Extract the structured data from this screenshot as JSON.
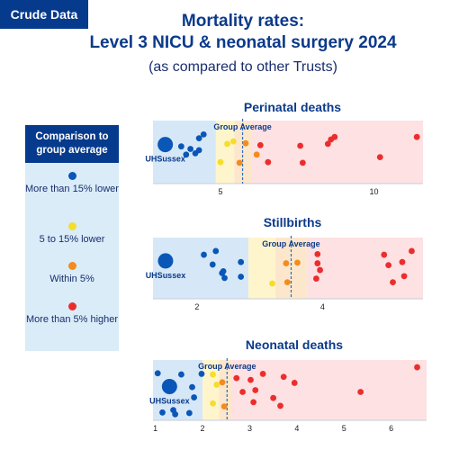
{
  "tag": "Crude Data",
  "title_line1": "Mortality rates:",
  "title_line2": "Level 3 NICU & neonatal surgery 2024",
  "subtitle": "(as compared to other Trusts)",
  "legend": {
    "header": "Comparison to group average",
    "items": [
      {
        "label": "More than 15% lower",
        "color": "#0a57b8"
      },
      {
        "label": "5 to 15% lower",
        "color": "#f5dd2a"
      },
      {
        "label": "Within 5%",
        "color": "#f28c1c"
      },
      {
        "label": "More than 5% higher",
        "color": "#ec2d2d"
      }
    ]
  },
  "colors": {
    "blue": "#0a57b8",
    "yellow": "#f5dd2a",
    "orange": "#f28c1c",
    "red": "#ec2d2d",
    "band_blue": "#d6e8f7",
    "band_yellow": "#fff5cc",
    "band_orange": "#fde7cc",
    "band_red": "#fde1e3",
    "average_line": "#2b6cc4"
  },
  "chart_data": [
    {
      "type": "scatter",
      "title": "Perinatal deaths",
      "xlim": [
        2.8,
        11.6
      ],
      "xticks": [
        5,
        10
      ],
      "group_average": 5.72,
      "average_label": "Group Average",
      "highlight": {
        "name": "UHSussex",
        "x": 3.2,
        "y": 0.62
      },
      "bands": [
        [
          2.8,
          4.85,
          "blue"
        ],
        [
          4.85,
          5.45,
          "yellow"
        ],
        [
          5.45,
          6.0,
          "orange"
        ],
        [
          6.0,
          11.6,
          "red"
        ]
      ],
      "points": [
        {
          "x": 3.72,
          "y": 0.59,
          "c": "blue"
        },
        {
          "x": 3.88,
          "y": 0.46,
          "c": "blue"
        },
        {
          "x": 4.02,
          "y": 0.55,
          "c": "blue"
        },
        {
          "x": 4.18,
          "y": 0.48,
          "c": "blue"
        },
        {
          "x": 4.3,
          "y": 0.72,
          "c": "blue"
        },
        {
          "x": 4.45,
          "y": 0.78,
          "c": "blue"
        },
        {
          "x": 4.3,
          "y": 0.53,
          "c": "blue"
        },
        {
          "x": 5.0,
          "y": 0.34,
          "c": "yellow"
        },
        {
          "x": 5.22,
          "y": 0.63,
          "c": "yellow"
        },
        {
          "x": 5.42,
          "y": 0.67,
          "c": "yellow"
        },
        {
          "x": 5.62,
          "y": 0.33,
          "c": "orange"
        },
        {
          "x": 5.82,
          "y": 0.64,
          "c": "orange"
        },
        {
          "x": 6.18,
          "y": 0.46,
          "c": "orange"
        },
        {
          "x": 6.3,
          "y": 0.61,
          "c": "red"
        },
        {
          "x": 6.55,
          "y": 0.34,
          "c": "red"
        },
        {
          "x": 7.6,
          "y": 0.6,
          "c": "red"
        },
        {
          "x": 7.68,
          "y": 0.33,
          "c": "red"
        },
        {
          "x": 8.5,
          "y": 0.63,
          "c": "red"
        },
        {
          "x": 8.72,
          "y": 0.74,
          "c": "red"
        },
        {
          "x": 8.6,
          "y": 0.7,
          "c": "red"
        },
        {
          "x": 10.2,
          "y": 0.42,
          "c": "red"
        },
        {
          "x": 11.4,
          "y": 0.74,
          "c": "red"
        }
      ]
    },
    {
      "type": "scatter",
      "title": "Stillbirths",
      "xlim": [
        1.3,
        5.6
      ],
      "xticks": [
        2,
        4
      ],
      "group_average": 3.5,
      "average_label": "Group Average",
      "highlight": {
        "name": "UHSussex",
        "x": 1.5,
        "y": 0.62
      },
      "bands": [
        [
          1.3,
          2.82,
          "blue"
        ],
        [
          2.82,
          3.25,
          "yellow"
        ],
        [
          3.25,
          3.75,
          "orange"
        ],
        [
          3.75,
          5.6,
          "red"
        ]
      ],
      "points": [
        {
          "x": 2.11,
          "y": 0.72,
          "c": "blue"
        },
        {
          "x": 2.25,
          "y": 0.56,
          "c": "blue"
        },
        {
          "x": 2.3,
          "y": 0.78,
          "c": "blue"
        },
        {
          "x": 2.4,
          "y": 0.42,
          "c": "blue"
        },
        {
          "x": 2.44,
          "y": 0.34,
          "c": "blue"
        },
        {
          "x": 2.42,
          "y": 0.45,
          "c": "blue"
        },
        {
          "x": 2.7,
          "y": 0.36,
          "c": "blue"
        },
        {
          "x": 2.7,
          "y": 0.6,
          "c": "blue"
        },
        {
          "x": 3.2,
          "y": 0.25,
          "c": "yellow"
        },
        {
          "x": 3.42,
          "y": 0.58,
          "c": "orange"
        },
        {
          "x": 3.44,
          "y": 0.27,
          "c": "orange"
        },
        {
          "x": 3.6,
          "y": 0.59,
          "c": "orange"
        },
        {
          "x": 3.92,
          "y": 0.73,
          "c": "red"
        },
        {
          "x": 3.92,
          "y": 0.58,
          "c": "red"
        },
        {
          "x": 3.96,
          "y": 0.47,
          "c": "red"
        },
        {
          "x": 3.9,
          "y": 0.33,
          "c": "red"
        },
        {
          "x": 4.98,
          "y": 0.72,
          "c": "red"
        },
        {
          "x": 5.05,
          "y": 0.55,
          "c": "red"
        },
        {
          "x": 5.12,
          "y": 0.27,
          "c": "red"
        },
        {
          "x": 5.27,
          "y": 0.6,
          "c": "red"
        },
        {
          "x": 5.3,
          "y": 0.37,
          "c": "red"
        },
        {
          "x": 5.42,
          "y": 0.78,
          "c": "red"
        }
      ]
    },
    {
      "type": "scatter",
      "title": "Neonatal deaths",
      "xlim": [
        0.95,
        6.75
      ],
      "xticks": [
        1,
        2,
        3,
        4,
        5,
        6
      ],
      "group_average": 2.52,
      "average_label": "Group Average",
      "highlight": {
        "name": "UHSussex",
        "x": 1.3,
        "y": 0.56
      },
      "bands": [
        [
          0.95,
          2.0,
          "blue"
        ],
        [
          2.0,
          2.35,
          "yellow"
        ],
        [
          2.35,
          2.62,
          "orange"
        ],
        [
          2.62,
          6.75,
          "red"
        ]
      ],
      "points": [
        {
          "x": 1.05,
          "y": 0.78,
          "c": "blue"
        },
        {
          "x": 1.15,
          "y": 0.13,
          "c": "blue"
        },
        {
          "x": 1.38,
          "y": 0.17,
          "c": "blue"
        },
        {
          "x": 1.42,
          "y": 0.1,
          "c": "blue"
        },
        {
          "x": 1.55,
          "y": 0.76,
          "c": "blue"
        },
        {
          "x": 1.72,
          "y": 0.12,
          "c": "blue"
        },
        {
          "x": 1.78,
          "y": 0.55,
          "c": "blue"
        },
        {
          "x": 1.82,
          "y": 0.38,
          "c": "blue"
        },
        {
          "x": 1.98,
          "y": 0.77,
          "c": "blue"
        },
        {
          "x": 2.22,
          "y": 0.28,
          "c": "yellow"
        },
        {
          "x": 2.3,
          "y": 0.59,
          "c": "yellow"
        },
        {
          "x": 2.22,
          "y": 0.76,
          "c": "yellow"
        },
        {
          "x": 2.42,
          "y": 0.63,
          "c": "orange"
        },
        {
          "x": 2.46,
          "y": 0.23,
          "c": "orange"
        },
        {
          "x": 2.72,
          "y": 0.7,
          "c": "red"
        },
        {
          "x": 2.85,
          "y": 0.47,
          "c": "red"
        },
        {
          "x": 3.02,
          "y": 0.67,
          "c": "red"
        },
        {
          "x": 3.08,
          "y": 0.3,
          "c": "red"
        },
        {
          "x": 3.12,
          "y": 0.5,
          "c": "red"
        },
        {
          "x": 3.28,
          "y": 0.77,
          "c": "red"
        },
        {
          "x": 3.5,
          "y": 0.37,
          "c": "red"
        },
        {
          "x": 3.65,
          "y": 0.24,
          "c": "red"
        },
        {
          "x": 3.72,
          "y": 0.72,
          "c": "red"
        },
        {
          "x": 3.95,
          "y": 0.62,
          "c": "red"
        },
        {
          "x": 5.35,
          "y": 0.47,
          "c": "red"
        },
        {
          "x": 6.55,
          "y": 0.88,
          "c": "red"
        }
      ]
    }
  ]
}
